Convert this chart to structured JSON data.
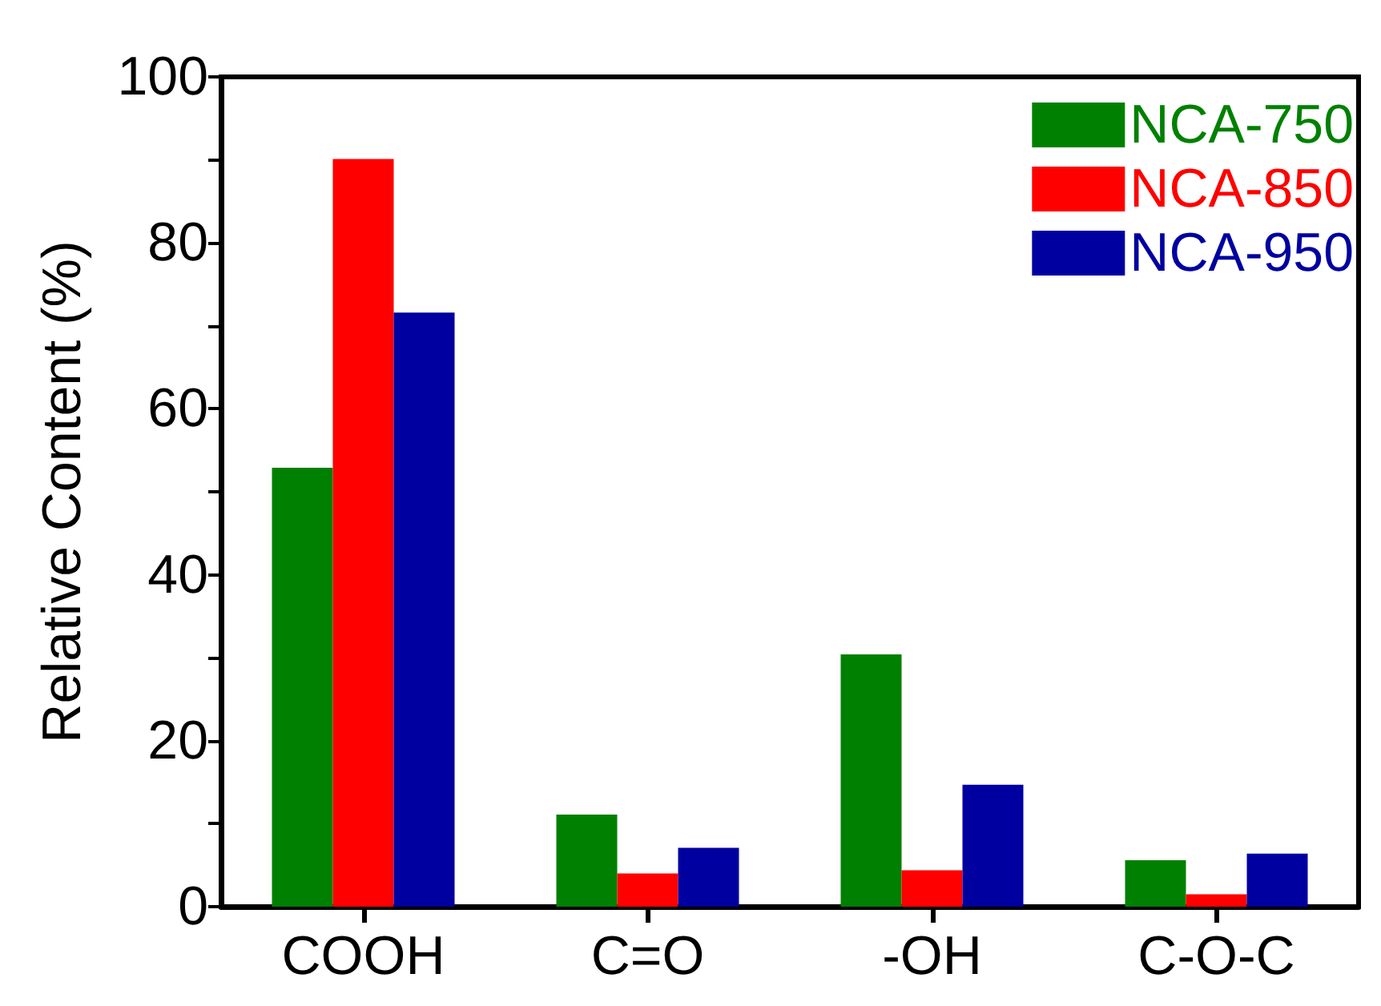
{
  "chart_data": {
    "type": "bar",
    "ylabel": "Relative Content (%)",
    "categories": [
      "COOH",
      "C=O",
      "-OH",
      "C-O-C"
    ],
    "series": [
      {
        "name": "NCA-750",
        "color": "#008000",
        "values": [
          52.9,
          11.1,
          30.4,
          5.6
        ]
      },
      {
        "name": "NCA-850",
        "color": "#ff0000",
        "values": [
          90.1,
          4.0,
          4.4,
          1.5
        ]
      },
      {
        "name": "NCA-950",
        "color": "#0000a0",
        "values": [
          71.6,
          7.1,
          14.7,
          6.4
        ]
      }
    ],
    "ylim": [
      0,
      100
    ],
    "yticks": [
      0,
      {
        "value": 10,
        "label": null
      },
      20,
      {
        "value": 30,
        "label": null
      },
      40,
      {
        "value": 50,
        "label": null
      },
      60,
      {
        "value": 70,
        "label": null
      },
      80,
      {
        "value": 90,
        "label": null
      },
      100
    ],
    "grid": false,
    "legend": "top right"
  }
}
